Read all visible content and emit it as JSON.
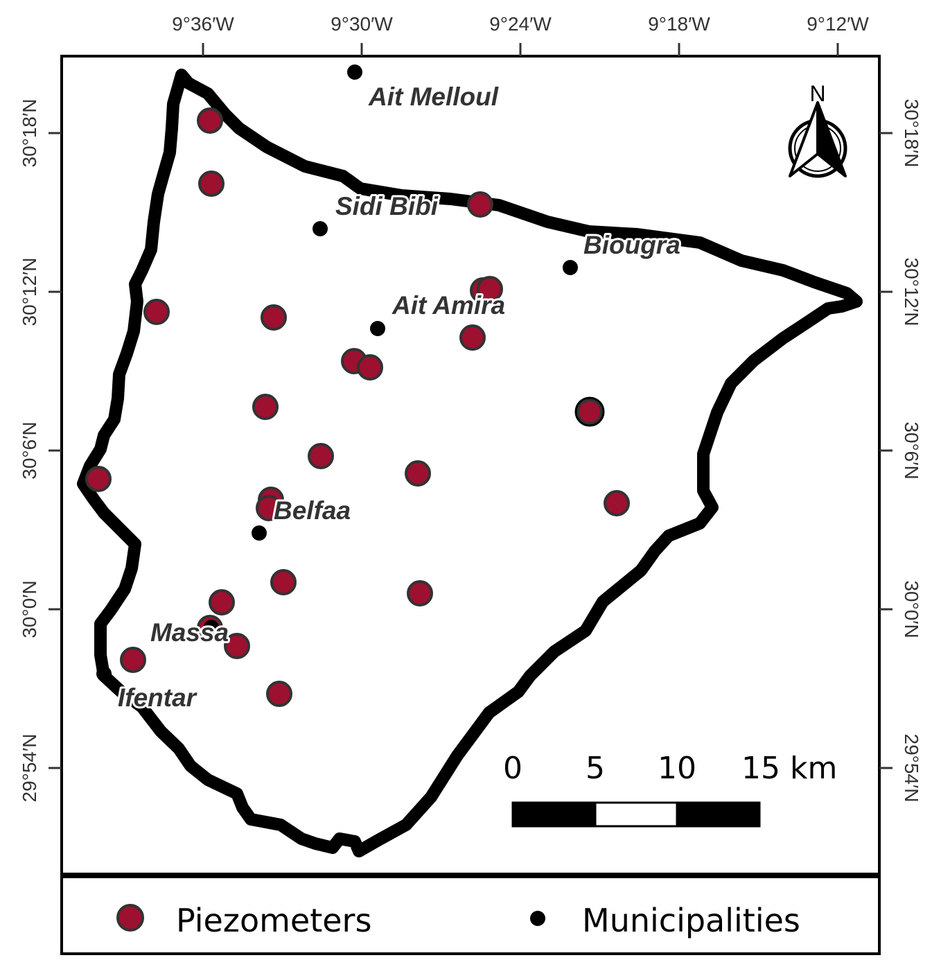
{
  "map": {
    "top_axis_labels": [
      "9°36′W",
      "9°30′W",
      "9°24′W",
      "9°18′W",
      "9°12′W"
    ],
    "left_axis_labels": [
      "30°18′N",
      "30°12′N",
      "30°6′N",
      "30°0′N",
      "29°54′N"
    ],
    "right_axis_labels": [
      "30°18′N",
      "30°12′N",
      "30°6′N",
      "30°0′N",
      "29°54′N"
    ],
    "north_arrow": {
      "label": "N",
      "icon": "north-arrow-icon"
    },
    "municipalities": [
      {
        "name": "Ait Melloul"
      },
      {
        "name": "Sidi Bibi"
      },
      {
        "name": "Biougra"
      },
      {
        "name": "Ait Amira"
      },
      {
        "name": "Belfaa"
      },
      {
        "name": "Massa"
      },
      {
        "name": "Ifentar"
      }
    ],
    "scale_bar": {
      "labels": [
        "0",
        "5",
        "10",
        "15 km"
      ]
    },
    "colors": {
      "piezometer_fill": "#9e1030",
      "piezometer_stroke": "#333333",
      "municipality": "#000000",
      "boundary": "#000000",
      "label_text": "#333333"
    }
  },
  "legend": {
    "piezometers_label": "Piezometers",
    "municipalities_label": "Municipalities"
  }
}
